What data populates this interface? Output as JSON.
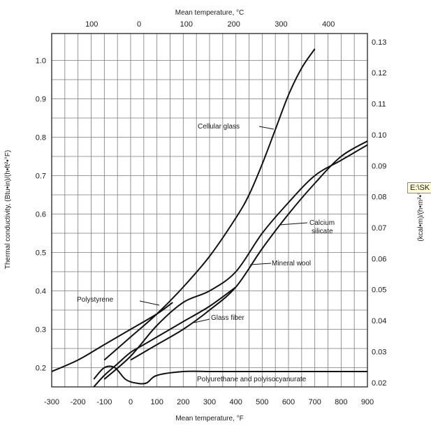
{
  "chart_data": {
    "type": "line",
    "title": "",
    "x_bottom_label": "Mean temperature, °F",
    "x_top_label": "Mean temperature, °C",
    "y_left_label": "Thermal conductivity, (Btu•in)/(h•ft²•°F)",
    "y_right_label": "(kcal•m)/(h•m²•°C)",
    "xlim": [
      -300,
      900
    ],
    "ylim": [
      0.15,
      1.07
    ],
    "x_bottom_ticks": [
      "-300",
      "-200",
      "-100",
      "0",
      "100",
      "200",
      "300",
      "400",
      "500",
      "600",
      "700",
      "800",
      "900"
    ],
    "x_top_ticks": [
      "100",
      "0",
      "100",
      "200",
      "300",
      "400"
    ],
    "y_left_ticks": [
      "0.2",
      "0.3",
      "0.4",
      "0.5",
      "0.6",
      "0.7",
      "0.8",
      "0.9",
      "1.0"
    ],
    "y_right_ticks": [
      "0.02",
      "0.03",
      "0.04",
      "0.05",
      "0.06",
      "0.07",
      "0.08",
      "0.09",
      "0.10",
      "0.11",
      "0.12",
      "0.13"
    ],
    "grid": true,
    "series": [
      {
        "name": "Cellular glass",
        "x": [
          -100,
          0,
          100,
          200,
          300,
          400,
          450,
          500,
          550,
          600,
          650,
          700
        ],
        "y": [
          0.22,
          0.28,
          0.34,
          0.41,
          0.49,
          0.59,
          0.65,
          0.73,
          0.82,
          0.91,
          0.98,
          1.03
        ]
      },
      {
        "name": "Calcium silicate",
        "x": [
          0,
          100,
          200,
          300,
          400,
          500,
          600,
          700,
          800,
          900
        ],
        "y": [
          0.22,
          0.26,
          0.3,
          0.35,
          0.41,
          0.51,
          0.6,
          0.68,
          0.75,
          0.79
        ]
      },
      {
        "name": "Mineral wool",
        "x": [
          -100,
          0,
          100,
          200,
          300,
          400,
          500,
          600,
          700,
          800,
          900
        ],
        "y": [
          0.17,
          0.23,
          0.31,
          0.37,
          0.4,
          0.45,
          0.55,
          0.63,
          0.7,
          0.74,
          0.78
        ]
      },
      {
        "name": "Polystyrene",
        "x": [
          -300,
          -200,
          -100,
          0,
          100,
          160
        ],
        "y": [
          0.19,
          0.22,
          0.26,
          0.3,
          0.34,
          0.37
        ]
      },
      {
        "name": "Glass fiber",
        "x": [
          -140,
          -100,
          -50,
          0,
          50,
          100,
          200,
          300,
          400
        ],
        "y": [
          0.15,
          0.18,
          0.21,
          0.24,
          0.26,
          0.28,
          0.32,
          0.36,
          0.41
        ]
      },
      {
        "name": "Polyurethane and polyisocyanurate",
        "x": [
          -140,
          -100,
          -60,
          -20,
          20,
          60,
          100,
          200,
          300,
          400,
          500,
          600,
          700,
          800,
          900
        ],
        "y": [
          0.17,
          0.2,
          0.2,
          0.17,
          0.16,
          0.16,
          0.18,
          0.19,
          0.19,
          0.19,
          0.19,
          0.19,
          0.19,
          0.19,
          0.19
        ]
      }
    ],
    "curve_labels": [
      "Cellular glass",
      "Calcium",
      "silicate",
      "Mineral wool",
      "Polystyrene",
      "Glass fiber",
      "Polyurethane and polyisocyanurate"
    ]
  },
  "tooltip": {
    "text": "E:\\SK"
  }
}
